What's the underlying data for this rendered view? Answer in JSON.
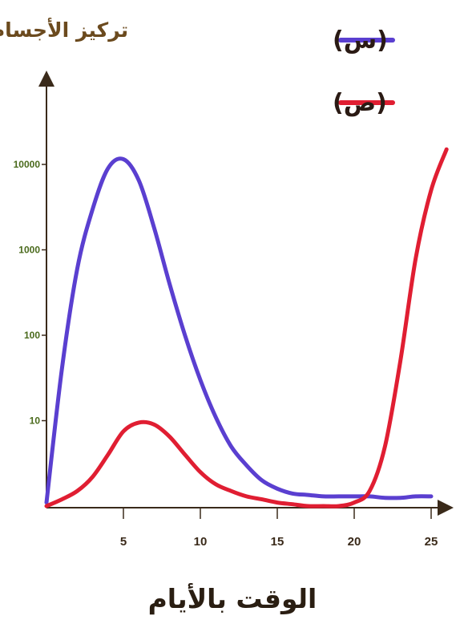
{
  "chart_data": {
    "type": "line",
    "xlabel": "الوقت بالأيام",
    "ylabel": "تركيز الأجسام",
    "y_scale": "log",
    "ylim": [
      1,
      50000
    ],
    "xlim": [
      0,
      26
    ],
    "x_ticks": [
      "5",
      "10",
      "15",
      "20",
      "25"
    ],
    "y_ticks": [
      "10",
      "100",
      "1000",
      "10000"
    ],
    "grid": false,
    "legend_position": "top-right",
    "series": [
      {
        "name": "(س)",
        "color": "#5a3fd0",
        "x": [
          0,
          1,
          2,
          3,
          4,
          5,
          6,
          7,
          8,
          9,
          10,
          11,
          12,
          13,
          14,
          15,
          16,
          17,
          18,
          19,
          20,
          21,
          22,
          23,
          24,
          25
        ],
        "y": [
          1.1,
          40,
          600,
          3000,
          9000,
          11500,
          6500,
          1800,
          400,
          100,
          30,
          11,
          5,
          3,
          2,
          1.6,
          1.4,
          1.35,
          1.3,
          1.3,
          1.3,
          1.3,
          1.25,
          1.25,
          1.3,
          1.3
        ]
      },
      {
        "name": "(ص)",
        "color": "#e01e32",
        "x": [
          0,
          1,
          2,
          3,
          4,
          5,
          6,
          7,
          8,
          9,
          10,
          11,
          12,
          13,
          14,
          15,
          16,
          17,
          18,
          19,
          20,
          21,
          22,
          23,
          24,
          25,
          26
        ],
        "y": [
          1,
          1.2,
          1.5,
          2.2,
          4,
          7.5,
          9.5,
          9,
          6.5,
          4,
          2.5,
          1.8,
          1.5,
          1.3,
          1.2,
          1.1,
          1.05,
          1,
          1,
          1,
          1.1,
          1.5,
          5,
          50,
          800,
          5000,
          15000
        ]
      }
    ]
  }
}
